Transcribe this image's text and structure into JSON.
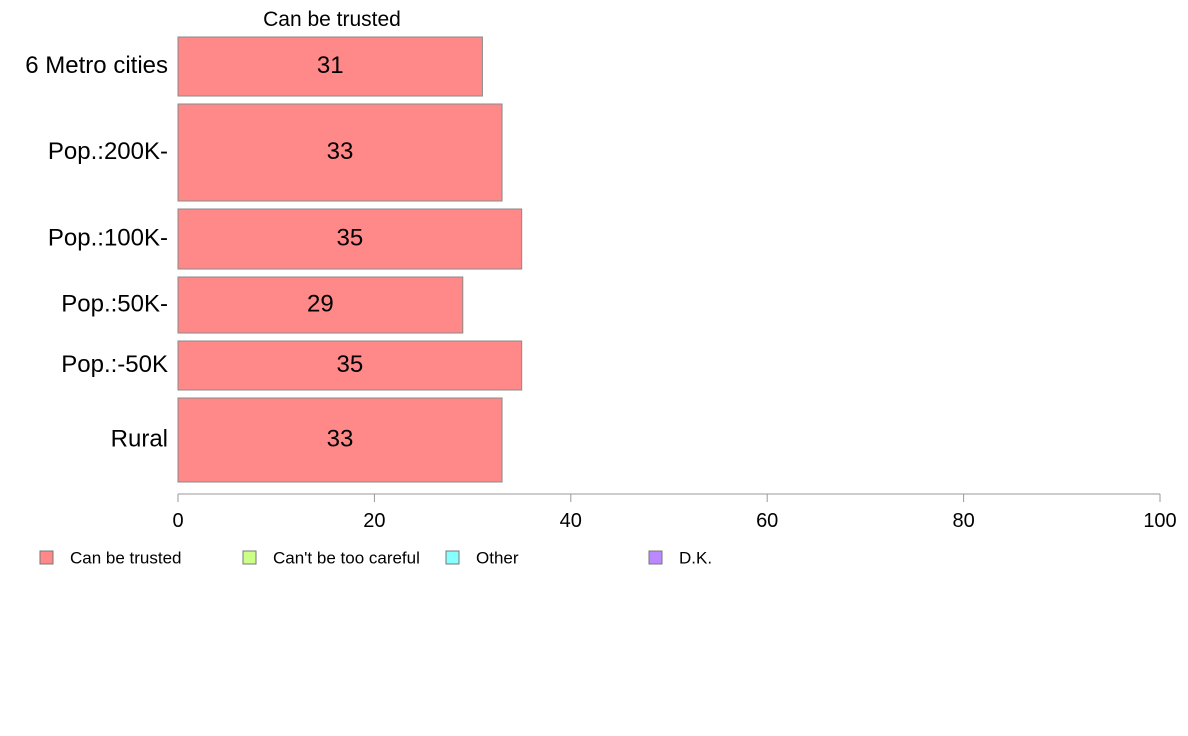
{
  "chart_data": {
    "type": "bar",
    "orientation": "horizontal",
    "title": "Can be trusted",
    "categories": [
      "6 Metro cities",
      "Pop.:200K-",
      "Pop.:100K-",
      "Pop.:50K-",
      "Pop.:-50K",
      "Rural"
    ],
    "series": [
      {
        "name": "Can be trusted",
        "color": "#ff8888",
        "values": [
          31,
          33,
          35,
          29,
          35,
          33
        ]
      }
    ],
    "xlim": [
      0,
      100
    ],
    "xticks": [
      "0",
      "20",
      "40",
      "60",
      "80",
      "100"
    ],
    "grid": false,
    "legend": {
      "placement": "bottom",
      "items": [
        {
          "label": "Can be trusted",
          "color": "#ff8888"
        },
        {
          "label": "Can't be too careful",
          "color": "#ccff88"
        },
        {
          "label": "Other",
          "color": "#88ffff"
        },
        {
          "label": "D.K.",
          "color": "#bb88ff"
        }
      ]
    }
  }
}
